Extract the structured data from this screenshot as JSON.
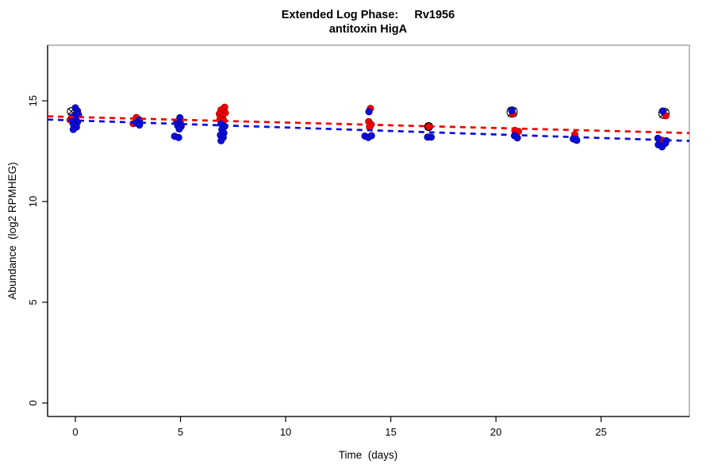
{
  "display": {
    "title_line1": "Extended Log Phase:     Rv1956",
    "title_line2": "antitoxin HigA",
    "x_axis_label": "Time  (days)",
    "y_axis_label": "Abundance  (log2 RPMHEG)"
  },
  "colors": {
    "red_series": "#f40000",
    "blue_series": "#0c0cdc",
    "red_edge": "#8e0000",
    "blue_edge": "#000080",
    "outlier_marker": "#000000",
    "axis": "#000000",
    "plot_border": "#999999",
    "background": "#ffffff"
  },
  "chart_data": {
    "type": "scatter",
    "title": "Extended Log Phase: Rv1956 — antitoxin HigA",
    "xlabel": "Time (days)",
    "ylabel": "Abundance (log2 RPMHEG)",
    "xlim": [
      -1.32,
      29.2
    ],
    "ylim": [
      -0.67,
      17.76
    ],
    "x_ticks": [
      0,
      5,
      10,
      15,
      20,
      25
    ],
    "y_ticks": [
      0,
      5,
      10,
      15
    ],
    "grid": false,
    "legend": false,
    "series": [
      {
        "name": "red",
        "color_key": "red_series",
        "edge_key": "red_edge",
        "points": [
          [
            -0.25,
            14.05
          ],
          [
            2.9,
            14.17
          ],
          [
            2.75,
            13.87
          ],
          [
            7.1,
            14.68
          ],
          [
            6.93,
            14.55
          ],
          [
            7.13,
            14.4
          ],
          [
            6.85,
            14.35
          ],
          [
            7.0,
            14.25
          ],
          [
            6.88,
            14.1
          ],
          [
            7.05,
            14.03
          ],
          [
            14.03,
            14.62
          ],
          [
            13.95,
            13.97
          ],
          [
            14.07,
            13.82
          ],
          [
            13.99,
            13.7
          ],
          [
            16.8,
            13.72
          ],
          [
            20.8,
            14.36
          ],
          [
            20.9,
            13.53
          ],
          [
            21.07,
            13.48
          ],
          [
            23.75,
            13.33
          ],
          [
            28.08,
            14.26
          ],
          [
            27.9,
            13.04
          ]
        ]
      },
      {
        "name": "blue",
        "color_key": "blue_series",
        "edge_key": "blue_edge",
        "points": [
          [
            0.0,
            14.65
          ],
          [
            0.1,
            14.5
          ],
          [
            0.05,
            14.37
          ],
          [
            0.15,
            14.3
          ],
          [
            -0.15,
            14.2
          ],
          [
            0.0,
            14.1
          ],
          [
            0.1,
            13.95
          ],
          [
            -0.1,
            13.85
          ],
          [
            0.05,
            13.7
          ],
          [
            -0.1,
            13.58
          ],
          [
            3.05,
            14.05
          ],
          [
            2.9,
            13.9
          ],
          [
            3.05,
            13.8
          ],
          [
            4.97,
            14.16
          ],
          [
            4.82,
            13.96
          ],
          [
            4.99,
            13.9
          ],
          [
            4.87,
            13.77
          ],
          [
            5.03,
            13.73
          ],
          [
            4.94,
            13.6
          ],
          [
            4.72,
            13.24
          ],
          [
            4.91,
            13.18
          ],
          [
            6.93,
            13.86
          ],
          [
            7.1,
            13.73
          ],
          [
            6.97,
            13.57
          ],
          [
            7.06,
            13.4
          ],
          [
            6.9,
            13.3
          ],
          [
            7.03,
            13.18
          ],
          [
            6.93,
            13.02
          ],
          [
            13.96,
            14.46
          ],
          [
            13.77,
            13.25
          ],
          [
            13.93,
            13.18
          ],
          [
            14.08,
            13.27
          ],
          [
            16.75,
            13.2
          ],
          [
            16.92,
            13.2
          ],
          [
            20.75,
            14.51
          ],
          [
            20.88,
            13.27
          ],
          [
            21.02,
            13.16
          ],
          [
            23.68,
            13.11
          ],
          [
            23.84,
            13.04
          ],
          [
            27.93,
            14.49
          ],
          [
            27.7,
            13.14
          ],
          [
            28.1,
            13.02
          ],
          [
            27.72,
            12.82
          ],
          [
            27.9,
            12.72
          ],
          [
            28.06,
            12.9
          ]
        ]
      }
    ],
    "trend_lines": [
      {
        "series": "red",
        "style": "dashed",
        "x": [
          -1.32,
          29.2
        ],
        "y": [
          14.23,
          13.4
        ]
      },
      {
        "series": "blue",
        "style": "dashed",
        "x": [
          -1.32,
          29.2
        ],
        "y": [
          14.07,
          13.01
        ]
      }
    ],
    "outlier_markers": {
      "shape": "circle-x",
      "points": [
        {
          "x": -0.19,
          "y": 14.47,
          "r": 5
        },
        {
          "x": 16.8,
          "y": 13.72,
          "r": 5
        },
        {
          "x": 20.77,
          "y": 14.44,
          "r": 6.5
        },
        {
          "x": 27.99,
          "y": 14.38,
          "r": 6.5
        }
      ]
    }
  }
}
